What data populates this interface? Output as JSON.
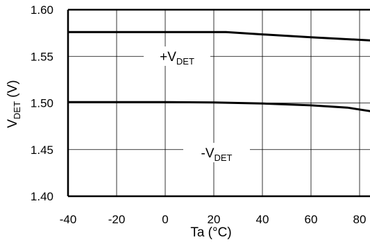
{
  "chart_data": {
    "type": "line",
    "xlabel": "Ta (°C)",
    "ylabel": {
      "main": "V",
      "sub": "DET",
      "unit": " (V)"
    },
    "xlim": [
      -40,
      85
    ],
    "ylim": [
      1.4,
      1.6
    ],
    "x_ticks": [
      -40,
      -20,
      0,
      20,
      40,
      60,
      80
    ],
    "y_ticks": [
      1.6,
      1.55,
      1.5,
      1.45,
      1.4
    ],
    "x_tick_labels": [
      "-40",
      "-20",
      "0",
      "20",
      "40",
      "60",
      "80"
    ],
    "y_tick_labels": [
      "1.60",
      "1.55",
      "1.50",
      "1.45",
      "1.40"
    ],
    "grid": true,
    "series": [
      {
        "label_main": "+V",
        "label_sub": "DET",
        "points": [
          [
            -40,
            1.576
          ],
          [
            0,
            1.576
          ],
          [
            20,
            1.576
          ],
          [
            25,
            1.576
          ],
          [
            40,
            1.5735
          ],
          [
            60,
            1.5705
          ],
          [
            85,
            1.567
          ]
        ]
      },
      {
        "label_main": "-V",
        "label_sub": "DET",
        "points": [
          [
            -40,
            1.501
          ],
          [
            0,
            1.501
          ],
          [
            20,
            1.5005
          ],
          [
            40,
            1.4995
          ],
          [
            60,
            1.4975
          ],
          [
            75,
            1.495
          ],
          [
            85,
            1.491
          ]
        ]
      }
    ]
  }
}
